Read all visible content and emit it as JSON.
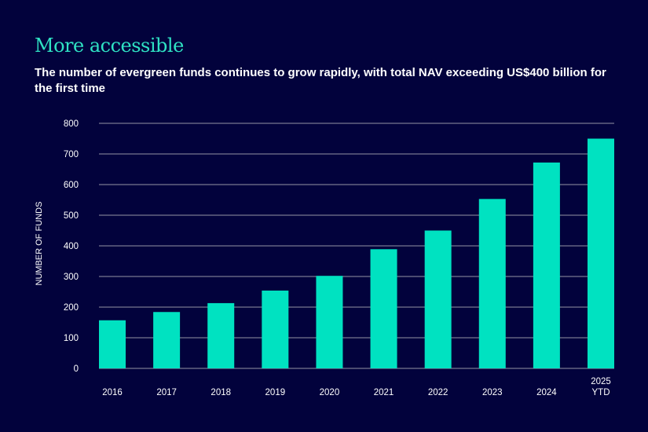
{
  "chart_data": {
    "type": "bar",
    "title": "More accessible",
    "subtitle": "The number of evergreen funds continues to grow rapidly, with total NAV exceeding US$400 billion for the first time",
    "xlabel": "",
    "ylabel": "NUMBER OF FUNDS",
    "categories": [
      [
        "2016"
      ],
      [
        "2017"
      ],
      [
        "2018"
      ],
      [
        "2019"
      ],
      [
        "2020"
      ],
      [
        "2021"
      ],
      [
        "2022"
      ],
      [
        "2023"
      ],
      [
        "2024"
      ],
      [
        "2025",
        "YTD"
      ]
    ],
    "values": [
      157,
      184,
      213,
      254,
      302,
      389,
      450,
      553,
      672,
      750
    ],
    "ylim": [
      0,
      800
    ],
    "yticks": [
      "0",
      "100",
      "200",
      "300",
      "400",
      "500",
      "600",
      "700",
      "800"
    ],
    "grid": true,
    "colors": {
      "background": "#02023c",
      "bar": "#00e2c1",
      "title": "#2fe3c4",
      "grid": "#77778f"
    }
  }
}
